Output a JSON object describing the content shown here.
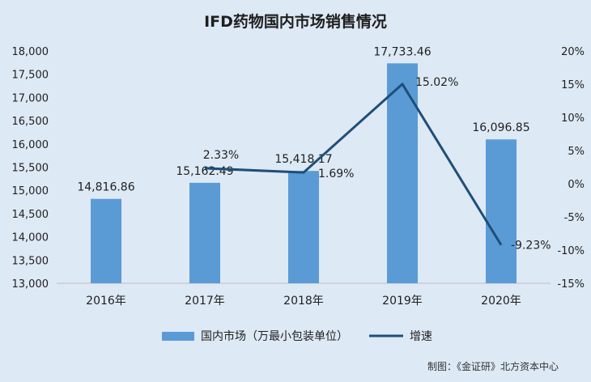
{
  "chart_data": {
    "type": "bar",
    "title": "IFD药物国内市场销售情况",
    "categories": [
      "2016年",
      "2017年",
      "2018年",
      "2019年",
      "2020年"
    ],
    "series": [
      {
        "name": "国内市场（万最小包装单位）",
        "type": "bar",
        "axis": "left",
        "values": [
          14816.86,
          15162.49,
          15418.17,
          17733.46,
          16096.85
        ],
        "labels": [
          "14,816.86",
          "15,162.49",
          "15,418.17",
          "17,733.46",
          "16,096.85"
        ],
        "color": "#5b9bd5"
      },
      {
        "name": "增速",
        "type": "line",
        "axis": "right",
        "values": [
          null,
          2.33,
          1.69,
          15.02,
          -9.23
        ],
        "labels": [
          "",
          "2.33%",
          "1.69%",
          "15.02%",
          "-9.23%"
        ],
        "color": "#1f4e79"
      }
    ],
    "y_left": {
      "ylim": [
        13000,
        18000
      ],
      "ticks": [
        "13,000",
        "13,500",
        "14,000",
        "14,500",
        "15,000",
        "15,500",
        "16,000",
        "16,500",
        "17,000",
        "17,500",
        "18,000"
      ]
    },
    "y_right": {
      "ylim": [
        -15,
        20
      ],
      "ticks": [
        "-15%",
        "-10%",
        "-5%",
        "0%",
        "5%",
        "10%",
        "15%",
        "20%"
      ]
    },
    "grid": false,
    "legend": "bottom",
    "source": "制图：《金证研》北方资本中心"
  }
}
